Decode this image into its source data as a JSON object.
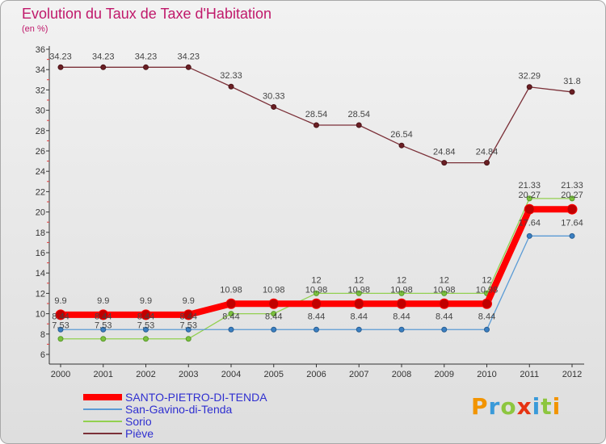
{
  "header": {
    "title": "Evolution du Taux de Taxe d'Habitation",
    "subtitle": "(en %)"
  },
  "brand": {
    "letters": [
      "P",
      "r",
      "o",
      "x",
      "i",
      "t",
      "i"
    ],
    "colors": [
      "#f29400",
      "#3a9ad9",
      "#8dc63f",
      "#e63312",
      "#3a9ad9",
      "#8dc63f",
      "#f29400"
    ]
  },
  "chart_data": {
    "type": "line",
    "title": "Evolution du Taux de Taxe d'Habitation",
    "subtitle": "(en %)",
    "xlabel": "",
    "ylabel": "",
    "categories": [
      "2000",
      "2001",
      "2002",
      "2003",
      "2004",
      "2005",
      "2006",
      "2007",
      "2008",
      "2009",
      "2010",
      "2011",
      "2012"
    ],
    "ylim": [
      6,
      36
    ],
    "yticks": [
      6,
      8,
      10,
      12,
      14,
      16,
      18,
      20,
      22,
      24,
      26,
      28,
      30,
      32,
      34,
      36
    ],
    "grid": false,
    "legend_position": "bottom-left",
    "series": [
      {
        "name": "SANTO-PIETRO-DI-TENDA",
        "color": "#ff0000",
        "values": [
          9.9,
          9.9,
          9.9,
          9.9,
          10.98,
          10.98,
          10.98,
          10.98,
          10.98,
          10.98,
          10.98,
          20.27,
          20.27
        ],
        "labels": [
          "9.9",
          "9.9",
          "9.9",
          "9.9",
          "10.98",
          "10.98",
          "10.98",
          "10.98",
          "10.98",
          "10.98",
          "10.98",
          "20.27",
          "20.27"
        ]
      },
      {
        "name": "San-Gavino-di-Tenda",
        "color": "#5b9bd5",
        "values": [
          8.44,
          8.44,
          8.44,
          8.44,
          8.44,
          8.44,
          8.44,
          8.44,
          8.44,
          8.44,
          8.44,
          17.64,
          17.64
        ],
        "labels": [
          "8.44",
          "8.44",
          "8.44",
          "8.44",
          "8.44",
          "8.44",
          "8.44",
          "8.44",
          "8.44",
          "8.44",
          "8.44",
          "17.64",
          "17.64"
        ]
      },
      {
        "name": "Sorio",
        "color": "#92d050",
        "values": [
          7.53,
          7.53,
          7.53,
          7.53,
          10,
          10,
          12,
          12,
          12,
          12,
          12,
          21.33,
          21.33
        ],
        "labels": [
          "7.53",
          "7.53",
          "7.53",
          "7.53",
          "",
          "",
          "12",
          "12",
          "12",
          "12",
          "12",
          "21.33",
          "21.33"
        ]
      },
      {
        "name": "Piève",
        "color": "#7b3038",
        "values": [
          34.23,
          34.23,
          34.23,
          34.23,
          32.33,
          30.33,
          28.54,
          28.54,
          26.54,
          24.84,
          24.84,
          32.29,
          31.8
        ],
        "labels": [
          "34.23",
          "34.23",
          "34.23",
          "34.23",
          "32.33",
          "30.33",
          "28.54",
          "28.54",
          "26.54",
          "24.84",
          "24.84",
          "32.29",
          "31.8"
        ]
      }
    ]
  }
}
